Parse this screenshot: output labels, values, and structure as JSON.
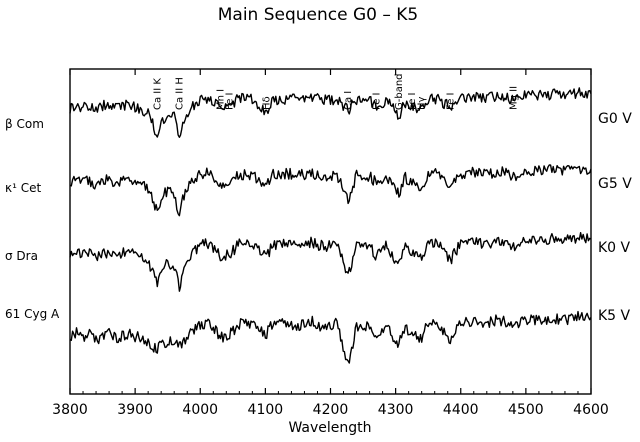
{
  "chart_data": {
    "type": "line",
    "title": "Main Sequence G0 – K5",
    "xlabel": "Wavelength",
    "ylabel": "",
    "xlim": [
      3800,
      4600
    ],
    "xticks": [
      3800,
      3900,
      4000,
      4100,
      4200,
      4300,
      4400,
      4500,
      4600
    ],
    "grid": false,
    "line_color": "#000000",
    "annotations": [
      {
        "label": "Ca II K",
        "x": 3934
      },
      {
        "label": "Ca II H",
        "x": 3968
      },
      {
        "label": "Mn I",
        "x": 4031
      },
      {
        "label": "Fe I",
        "x": 4045
      },
      {
        "label": "Hδ",
        "x": 4102
      },
      {
        "label": "Ca I",
        "x": 4227
      },
      {
        "label": "Fe I",
        "x": 4271
      },
      {
        "label": "G-band",
        "x": 4305
      },
      {
        "label": "Fe I",
        "x": 4325
      },
      {
        "label": "Hγ",
        "x": 4340
      },
      {
        "label": "Fe I",
        "x": 4384
      },
      {
        "label": "Mg II",
        "x": 4481
      }
    ],
    "series": [
      {
        "name": "β Com",
        "class": "G0 V",
        "x": [
          3800,
          3810,
          3820,
          3830,
          3840,
          3850,
          3860,
          3870,
          3880,
          3890,
          3900,
          3910,
          3920,
          3925,
          3934,
          3940,
          3950,
          3960,
          3968,
          3975,
          3985,
          4000,
          4010,
          4020,
          4031,
          4045,
          4060,
          4080,
          4102,
          4110,
          4130,
          4150,
          4170,
          4190,
          4210,
          4227,
          4240,
          4260,
          4271,
          4285,
          4300,
          4305,
          4315,
          4325,
          4340,
          4350,
          4365,
          4384,
          4400,
          4420,
          4440,
          4460,
          4481,
          4500,
          4520,
          4540,
          4560,
          4580,
          4600
        ],
        "y": [
          0.7,
          0.76,
          0.72,
          0.74,
          0.68,
          0.75,
          0.78,
          0.7,
          0.74,
          0.77,
          0.72,
          0.7,
          0.62,
          0.55,
          0.25,
          0.5,
          0.62,
          0.56,
          0.2,
          0.55,
          0.72,
          0.84,
          0.86,
          0.82,
          0.74,
          0.76,
          0.86,
          0.84,
          0.6,
          0.85,
          0.86,
          0.84,
          0.87,
          0.83,
          0.86,
          0.68,
          0.85,
          0.82,
          0.74,
          0.83,
          0.65,
          0.58,
          0.8,
          0.76,
          0.66,
          0.84,
          0.86,
          0.72,
          0.86,
          0.88,
          0.86,
          0.9,
          0.84,
          0.92,
          0.9,
          0.93,
          0.92,
          0.95,
          0.94
        ]
      },
      {
        "name": "κ¹ Cet",
        "class": "G5 V",
        "x": [
          3800,
          3810,
          3820,
          3830,
          3840,
          3850,
          3860,
          3870,
          3880,
          3890,
          3900,
          3910,
          3920,
          3925,
          3934,
          3940,
          3950,
          3960,
          3968,
          3975,
          3985,
          4000,
          4010,
          4020,
          4031,
          4045,
          4060,
          4080,
          4102,
          4110,
          4130,
          4150,
          4170,
          4190,
          4210,
          4227,
          4240,
          4260,
          4271,
          4285,
          4300,
          4305,
          4315,
          4325,
          4340,
          4350,
          4365,
          4384,
          4400,
          4420,
          4440,
          4460,
          4481,
          4500,
          4520,
          4540,
          4560,
          4580,
          4600
        ],
        "y": [
          0.72,
          0.78,
          0.7,
          0.74,
          0.66,
          0.72,
          0.76,
          0.68,
          0.72,
          0.75,
          0.7,
          0.68,
          0.58,
          0.5,
          0.2,
          0.46,
          0.58,
          0.52,
          0.14,
          0.5,
          0.7,
          0.82,
          0.85,
          0.8,
          0.68,
          0.72,
          0.84,
          0.82,
          0.62,
          0.84,
          0.85,
          0.82,
          0.86,
          0.8,
          0.84,
          0.4,
          0.82,
          0.8,
          0.68,
          0.8,
          0.6,
          0.54,
          0.78,
          0.7,
          0.64,
          0.82,
          0.84,
          0.62,
          0.85,
          0.86,
          0.84,
          0.88,
          0.8,
          0.9,
          0.88,
          0.92,
          0.9,
          0.93,
          0.92
        ]
      },
      {
        "name": "σ Dra",
        "class": "K0 V",
        "x": [
          3800,
          3810,
          3820,
          3830,
          3840,
          3850,
          3860,
          3870,
          3880,
          3890,
          3900,
          3910,
          3920,
          3925,
          3934,
          3940,
          3950,
          3960,
          3968,
          3975,
          3985,
          4000,
          4010,
          4020,
          4031,
          4045,
          4060,
          4080,
          4102,
          4110,
          4130,
          4150,
          4170,
          4190,
          4210,
          4227,
          4240,
          4260,
          4271,
          4285,
          4300,
          4305,
          4315,
          4325,
          4340,
          4350,
          4365,
          4384,
          4400,
          4420,
          4440,
          4460,
          4481,
          4500,
          4520,
          4540,
          4560,
          4580,
          4600
        ],
        "y": [
          0.66,
          0.72,
          0.64,
          0.68,
          0.6,
          0.66,
          0.7,
          0.62,
          0.66,
          0.7,
          0.64,
          0.62,
          0.52,
          0.44,
          0.16,
          0.4,
          0.54,
          0.46,
          0.1,
          0.46,
          0.66,
          0.8,
          0.83,
          0.78,
          0.62,
          0.66,
          0.82,
          0.8,
          0.6,
          0.82,
          0.83,
          0.8,
          0.85,
          0.78,
          0.82,
          0.3,
          0.8,
          0.78,
          0.62,
          0.78,
          0.56,
          0.5,
          0.76,
          0.64,
          0.6,
          0.8,
          0.82,
          0.56,
          0.84,
          0.85,
          0.82,
          0.87,
          0.76,
          0.88,
          0.86,
          0.9,
          0.88,
          0.92,
          0.9
        ]
      },
      {
        "name": "61 Cyg A",
        "class": "K5 V",
        "x": [
          3800,
          3810,
          3820,
          3830,
          3840,
          3850,
          3860,
          3870,
          3880,
          3890,
          3900,
          3910,
          3920,
          3925,
          3934,
          3940,
          3950,
          3960,
          3968,
          3975,
          3985,
          4000,
          4010,
          4020,
          4031,
          4045,
          4060,
          4080,
          4102,
          4110,
          4130,
          4150,
          4170,
          4190,
          4210,
          4227,
          4240,
          4260,
          4271,
          4285,
          4300,
          4305,
          4315,
          4325,
          4340,
          4350,
          4365,
          4384,
          4400,
          4420,
          4440,
          4460,
          4481,
          4500,
          4520,
          4540,
          4560,
          4580,
          4600
        ],
        "y": [
          0.55,
          0.66,
          0.58,
          0.6,
          0.52,
          0.58,
          0.62,
          0.54,
          0.58,
          0.62,
          0.56,
          0.56,
          0.48,
          0.44,
          0.36,
          0.44,
          0.5,
          0.46,
          0.4,
          0.5,
          0.62,
          0.76,
          0.8,
          0.74,
          0.56,
          0.6,
          0.78,
          0.74,
          0.62,
          0.78,
          0.8,
          0.74,
          0.82,
          0.72,
          0.78,
          0.1,
          0.74,
          0.76,
          0.56,
          0.76,
          0.52,
          0.46,
          0.72,
          0.58,
          0.56,
          0.78,
          0.8,
          0.48,
          0.82,
          0.82,
          0.78,
          0.85,
          0.7,
          0.86,
          0.82,
          0.88,
          0.84,
          0.9,
          0.88
        ]
      }
    ]
  }
}
